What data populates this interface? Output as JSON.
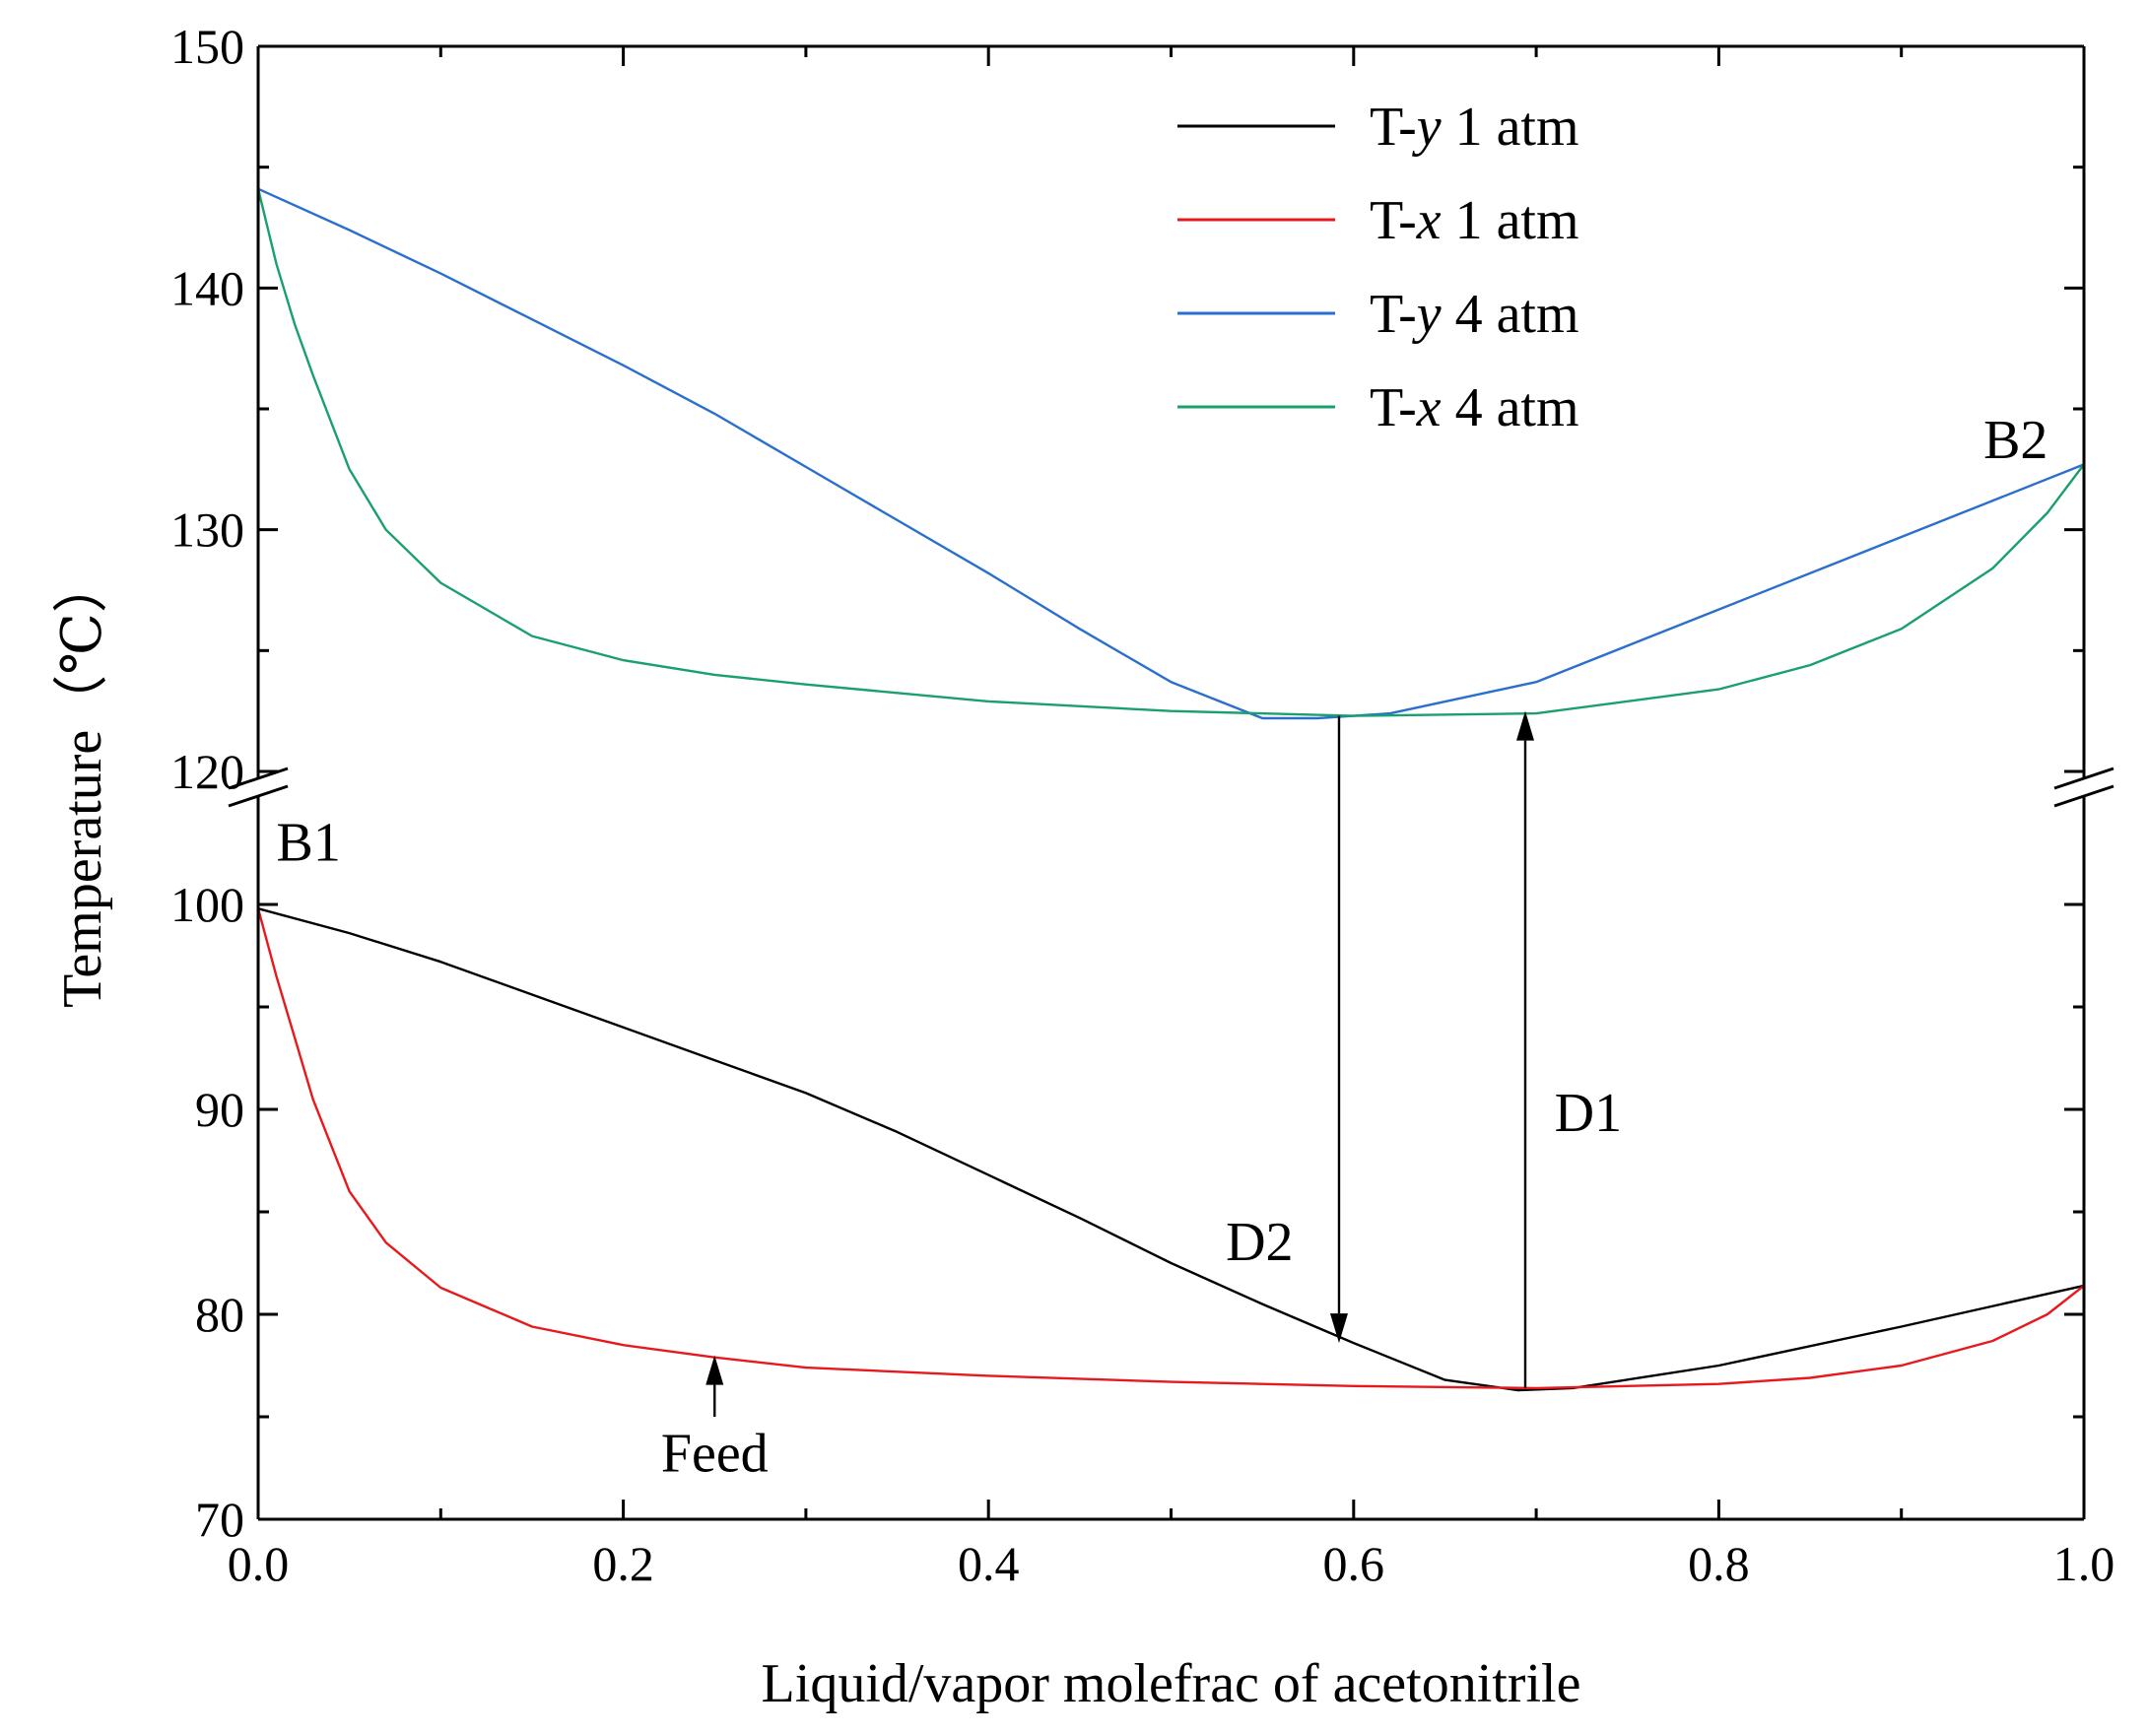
{
  "chart_data": {
    "type": "line",
    "title": "",
    "xlabel": "Liquid/vapor molefrac of acetonitrile",
    "ylabel": "Temperature（℃）",
    "xlim": [
      0.0,
      1.0
    ],
    "ylim_lower": [
      70,
      100
    ],
    "ylim_upper": [
      120,
      150
    ],
    "axis_break": "y between 100 and 120",
    "x_ticks": [
      "0.0",
      "0.2",
      "0.4",
      "0.6",
      "0.8",
      "1.0"
    ],
    "y_ticks": [
      "70",
      "80",
      "90",
      "100",
      "120",
      "130",
      "140",
      "150"
    ],
    "grid": false,
    "legend_position": "top-right",
    "series": [
      {
        "name": "T-y 1 atm",
        "name_prefix": "T-",
        "name_var": "y",
        "name_suffix": " 1 atm",
        "color": "#000000",
        "x": [
          0.0,
          0.05,
          0.1,
          0.15,
          0.2,
          0.25,
          0.3,
          0.35,
          0.4,
          0.45,
          0.5,
          0.55,
          0.6,
          0.65,
          0.69,
          0.72,
          0.8,
          0.9,
          1.0
        ],
        "y": [
          99.8,
          98.6,
          97.2,
          95.6,
          94.0,
          92.4,
          90.8,
          88.9,
          86.8,
          84.7,
          82.5,
          80.5,
          78.6,
          76.8,
          76.3,
          76.4,
          77.5,
          79.4,
          81.4
        ]
      },
      {
        "name": "T-x 1 atm",
        "name_prefix": "T-",
        "name_var": "x",
        "name_suffix": " 1 atm",
        "color": "#e8191c",
        "x": [
          0.0,
          0.01,
          0.02,
          0.03,
          0.05,
          0.07,
          0.1,
          0.15,
          0.2,
          0.25,
          0.3,
          0.4,
          0.5,
          0.6,
          0.7,
          0.8,
          0.85,
          0.9,
          0.95,
          0.98,
          1.0
        ],
        "y": [
          99.8,
          96.5,
          93.5,
          90.5,
          86.0,
          83.5,
          81.3,
          79.4,
          78.5,
          77.9,
          77.4,
          77.0,
          76.7,
          76.5,
          76.4,
          76.6,
          76.9,
          77.5,
          78.7,
          80.0,
          81.4
        ]
      },
      {
        "name": "T-y 4 atm",
        "name_prefix": "T-",
        "name_var": "y",
        "name_suffix": " 4 atm",
        "color": "#2a6fce",
        "x": [
          0.0,
          0.05,
          0.1,
          0.15,
          0.2,
          0.25,
          0.3,
          0.35,
          0.4,
          0.45,
          0.5,
          0.55,
          0.58,
          0.62,
          0.7,
          0.8,
          0.9,
          1.0
        ],
        "y": [
          144.1,
          142.4,
          140.6,
          138.7,
          136.8,
          134.8,
          132.6,
          130.4,
          128.2,
          125.9,
          123.7,
          122.2,
          122.2,
          122.4,
          123.7,
          126.7,
          129.7,
          132.7
        ]
      },
      {
        "name": "T-x 4 atm",
        "name_prefix": "T-",
        "name_var": "x",
        "name_suffix": " 4 atm",
        "color": "#1aa06c",
        "x": [
          0.0,
          0.01,
          0.02,
          0.03,
          0.05,
          0.07,
          0.1,
          0.15,
          0.2,
          0.25,
          0.3,
          0.4,
          0.5,
          0.6,
          0.7,
          0.8,
          0.85,
          0.9,
          0.95,
          0.98,
          1.0
        ],
        "y": [
          144.1,
          141.0,
          138.5,
          136.4,
          132.5,
          130.0,
          127.8,
          125.6,
          124.6,
          124.0,
          123.6,
          122.9,
          122.5,
          122.3,
          122.4,
          123.4,
          124.4,
          125.9,
          128.4,
          130.7,
          132.7
        ]
      }
    ],
    "arrows": [
      {
        "id": "d2",
        "x": 0.592,
        "from_y": 122.3,
        "to_y": 78.6
      },
      {
        "id": "d1",
        "x": 0.694,
        "from_y": 76.4,
        "to_y": 122.5
      },
      {
        "id": "feed",
        "x": 0.25,
        "from_y": 75.0,
        "to_y": 78.0
      }
    ],
    "annotations": [
      {
        "id": "b1",
        "text": "B1",
        "x": 0.01,
        "y": 103.0
      },
      {
        "id": "b2",
        "text": "B2",
        "x": 0.945,
        "y": 133.7
      },
      {
        "id": "d2",
        "text": "D2",
        "x": 0.53,
        "y": 83.5
      },
      {
        "id": "d1",
        "text": "D1",
        "x": 0.71,
        "y": 89.8
      },
      {
        "id": "feed",
        "text": "Feed",
        "x": 0.25,
        "y": 73.2
      }
    ]
  }
}
